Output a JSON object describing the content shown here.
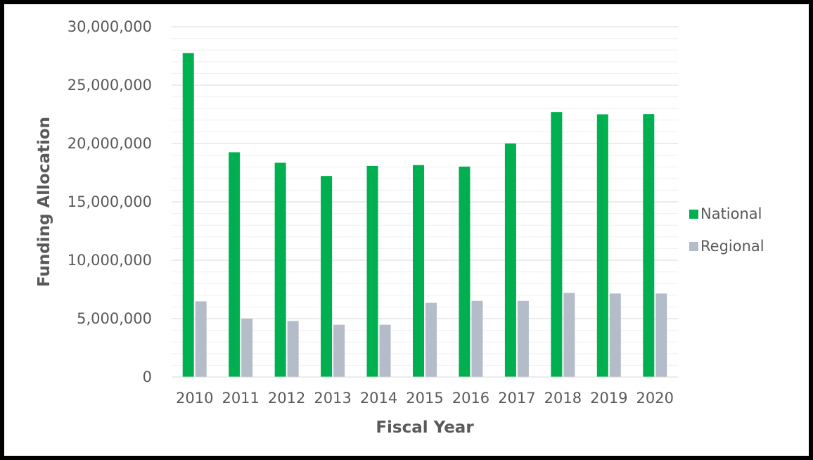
{
  "chart_data": {
    "type": "bar",
    "title": "",
    "xlabel": "Fiscal Year",
    "ylabel": "Funding Allocation",
    "categories": [
      "2010",
      "2011",
      "2012",
      "2013",
      "2014",
      "2015",
      "2016",
      "2017",
      "2018",
      "2019",
      "2020"
    ],
    "series": [
      {
        "name": "National",
        "color": "#00b050",
        "values": [
          27750000,
          19250000,
          18350000,
          17220000,
          18080000,
          18150000,
          18020000,
          20000000,
          22700000,
          22500000,
          22520000
        ]
      },
      {
        "name": "Regional",
        "color": "#b4bcc9",
        "values": [
          6480000,
          5000000,
          4800000,
          4480000,
          4480000,
          6350000,
          6520000,
          6520000,
          7200000,
          7150000,
          7150000
        ]
      }
    ],
    "ylim": [
      0,
      30000000
    ],
    "yticks": [
      0,
      5000000,
      10000000,
      15000000,
      20000000,
      25000000,
      30000000
    ],
    "ytick_labels": [
      "0",
      "5,000,000",
      "10,000,000",
      "15,000,000",
      "20,000,000",
      "25,000,000",
      "30,000,000"
    ],
    "minor_grid_step": 1000000,
    "grid": true,
    "legend_position": "right"
  }
}
